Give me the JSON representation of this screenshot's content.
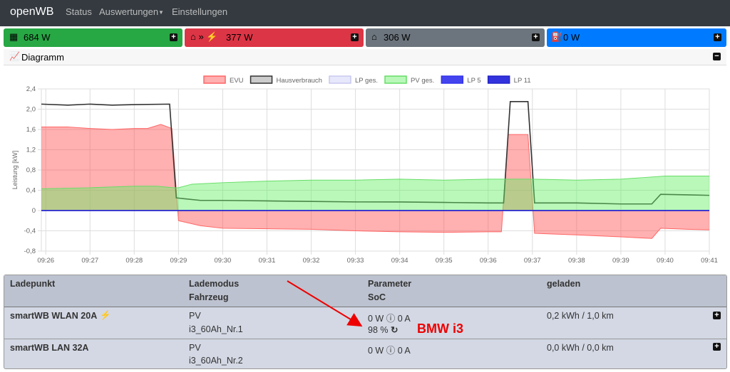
{
  "nav": {
    "brand": "openWB",
    "items": [
      "Status",
      "Auswertungen",
      "Einstellungen"
    ]
  },
  "cards": [
    "684 W",
    "377 W",
    "306 W",
    "0 W"
  ],
  "panel_title": "Diagramm",
  "chart_data": {
    "type": "area",
    "ylabel": "Leistung [kW]",
    "xlim": [
      25.9,
      41
    ],
    "xticks": [
      {
        "value": 26,
        "label": "09:26"
      },
      {
        "value": 27,
        "label": "09:27"
      },
      {
        "value": 28,
        "label": "09:28"
      },
      {
        "value": 29,
        "label": "09:29"
      },
      {
        "value": 30,
        "label": "09:30"
      },
      {
        "value": 31,
        "label": "09:31"
      },
      {
        "value": 32,
        "label": "09:32"
      },
      {
        "value": 33,
        "label": "09:33"
      },
      {
        "value": 34,
        "label": "09:34"
      },
      {
        "value": 35,
        "label": "09:35"
      },
      {
        "value": 36,
        "label": "09:36"
      },
      {
        "value": 37,
        "label": "09:37"
      },
      {
        "value": 38,
        "label": "09:38"
      },
      {
        "value": 39,
        "label": "09:39"
      },
      {
        "value": 40,
        "label": "09:40"
      },
      {
        "value": 41,
        "label": "09:41"
      }
    ],
    "ylim": [
      -0.8,
      2.4
    ],
    "yticks": [
      {
        "value": -0.8,
        "label": "-0,8"
      },
      {
        "value": -0.4,
        "label": "-0,4"
      },
      0,
      {
        "value": 0.4,
        "label": "0,4"
      },
      {
        "value": 0.8,
        "label": "0,8"
      },
      {
        "value": 1.2,
        "label": "1,2"
      },
      {
        "value": 1.6,
        "label": "1,6"
      },
      {
        "value": 2.0,
        "label": "2,0"
      },
      {
        "value": 2.4,
        "label": "2,4"
      }
    ],
    "grid": true,
    "legend": "top",
    "series": [
      {
        "name": "EVU",
        "color": "#ff6666",
        "fill": "rgba(255,80,80,0.45)",
        "area": true,
        "x": [
          25.9,
          26.5,
          27,
          27.5,
          28,
          28.3,
          28.6,
          28.85,
          29.0,
          29.5,
          30,
          31,
          32,
          33,
          34,
          35,
          36,
          36.3,
          36.45,
          36.9,
          37.05,
          38,
          39,
          39.7,
          39.9,
          40.5,
          41
        ],
        "values": [
          1.65,
          1.65,
          1.62,
          1.6,
          1.62,
          1.62,
          1.7,
          1.62,
          -0.2,
          -0.3,
          -0.35,
          -0.36,
          -0.37,
          -0.4,
          -0.42,
          -0.43,
          -0.42,
          -0.42,
          1.5,
          1.5,
          -0.45,
          -0.48,
          -0.52,
          -0.55,
          -0.35,
          -0.37,
          -0.38
        ]
      },
      {
        "name": "Hausverbrauch",
        "color": "#333333",
        "fill": "#cccccc",
        "area": false,
        "x": [
          25.9,
          26.5,
          27,
          27.5,
          28,
          28.8,
          28.95,
          29.5,
          30,
          31,
          32,
          33,
          34,
          35,
          36,
          36.35,
          36.5,
          36.9,
          37.05,
          38,
          39,
          39.7,
          39.9,
          40.5,
          41
        ],
        "values": [
          2.1,
          2.08,
          2.1,
          2.08,
          2.09,
          2.1,
          0.25,
          0.2,
          0.2,
          0.19,
          0.18,
          0.17,
          0.17,
          0.16,
          0.15,
          0.15,
          2.15,
          2.15,
          0.15,
          0.15,
          0.13,
          0.13,
          0.32,
          0.31,
          0.3
        ]
      },
      {
        "name": "LP ges.",
        "color": "#c8c8f0",
        "fill": "rgba(210,210,250,0.5)",
        "area": true,
        "x": [
          25.9,
          41
        ],
        "values": [
          0,
          0
        ]
      },
      {
        "name": "PV ges.",
        "color": "#66dd66",
        "fill": "rgba(100,240,100,0.45)",
        "area": true,
        "x": [
          25.9,
          27,
          28,
          28.5,
          28.9,
          29.0,
          29.3,
          30,
          31,
          32,
          33,
          34,
          35,
          36,
          36.5,
          37,
          38,
          39,
          39.5,
          40,
          41
        ],
        "values": [
          0.43,
          0.45,
          0.48,
          0.48,
          0.45,
          0.45,
          0.52,
          0.55,
          0.58,
          0.6,
          0.6,
          0.62,
          0.6,
          0.62,
          0.62,
          0.62,
          0.6,
          0.62,
          0.65,
          0.68,
          0.68
        ]
      },
      {
        "name": "LP 5",
        "color": "#3333ee",
        "fill": "#4444ee",
        "area": false,
        "x": [
          25.9,
          41
        ],
        "values": [
          0,
          0
        ]
      },
      {
        "name": "LP 11",
        "color": "#2222cc",
        "fill": "#3333dd",
        "area": false,
        "x": [
          25.9,
          41
        ],
        "values": [
          0,
          0
        ]
      }
    ]
  },
  "table": {
    "headers": [
      [
        "Ladepunkt"
      ],
      [
        "Lademodus",
        "Fahrzeug"
      ],
      [
        "Parameter",
        "SoC"
      ],
      [
        "geladen"
      ]
    ],
    "rows": [
      {
        "name": "smartWB WLAN 20A",
        "mode": "PV",
        "vehicle": "i3_60Ah_Nr.1",
        "power": "0 W",
        "current": "0 A",
        "soc": "98 %",
        "charged": "0,2 kWh / 1,0 km"
      },
      {
        "name": "smartWB LAN 32A",
        "mode": "PV",
        "vehicle": "i3_60Ah_Nr.2",
        "power": "0 W",
        "current": "0 A",
        "charged": "0,0 kWh / 0,0 km"
      }
    ]
  },
  "annotation": "BMW i3"
}
